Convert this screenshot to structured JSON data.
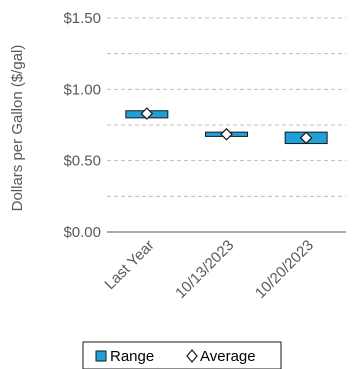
{
  "chart_data": {
    "type": "bar",
    "title": "",
    "xlabel": "",
    "ylabel": "Dollars per Gallon ($/gal)",
    "ylim": [
      0,
      1.5
    ],
    "yticks": [
      0,
      0.25,
      0.5,
      0.75,
      1.0,
      1.25,
      1.5
    ],
    "ytick_labels": [
      "$0.00",
      "",
      "$0.50",
      "",
      "$1.00",
      "",
      "$1.50"
    ],
    "grid": true,
    "categories": [
      "Last Year",
      "10/13/2023",
      "10/20/2023"
    ],
    "series": [
      {
        "name": "Range",
        "kind": "floating-bar",
        "low": [
          0.8,
          0.67,
          0.62
        ],
        "high": [
          0.85,
          0.7,
          0.7
        ]
      },
      {
        "name": "Average",
        "kind": "marker",
        "values": [
          0.83,
          0.685,
          0.66
        ]
      }
    ],
    "legend_position": "bottom",
    "colors": {
      "range_fill": "#1fa0d8",
      "range_edge": "#1a1a1a",
      "marker_edge": "#1a1a1a",
      "grid": "#bfbfbf",
      "axis": "#595959"
    }
  }
}
